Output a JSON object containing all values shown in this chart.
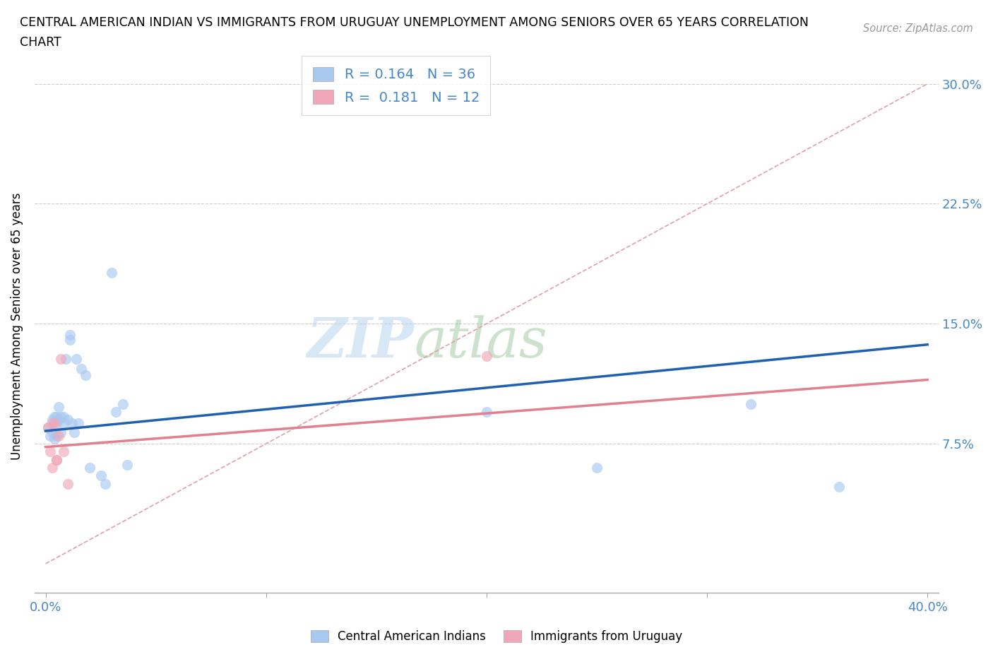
{
  "title_line1": "CENTRAL AMERICAN INDIAN VS IMMIGRANTS FROM URUGUAY UNEMPLOYMENT AMONG SENIORS OVER 65 YEARS CORRELATION",
  "title_line2": "CHART",
  "source": "Source: ZipAtlas.com",
  "ylabel": "Unemployment Among Seniors over 65 years",
  "watermark_zip": "ZIP",
  "watermark_atlas": "atlas",
  "blue_color": "#A8C8F0",
  "pink_color": "#F0A8B8",
  "blue_line_color": "#2060B0",
  "pink_line_color": "#E08090",
  "dashed_line_color": "#E0A0A8",
  "grid_color": "#CCCCCC",
  "axis_color": "#AAAAAA",
  "tick_label_color": "#4488CC",
  "blue_scatter_x": [
    0.001,
    0.002,
    0.003,
    0.003,
    0.004,
    0.004,
    0.005,
    0.005,
    0.005,
    0.006,
    0.006,
    0.007,
    0.007,
    0.008,
    0.008,
    0.009,
    0.01,
    0.011,
    0.011,
    0.012,
    0.013,
    0.014,
    0.015,
    0.016,
    0.018,
    0.02,
    0.025,
    0.027,
    0.03,
    0.032,
    0.035,
    0.037,
    0.2,
    0.25,
    0.32,
    0.36
  ],
  "blue_scatter_y": [
    0.085,
    0.08,
    0.082,
    0.09,
    0.078,
    0.092,
    0.08,
    0.088,
    0.092,
    0.09,
    0.098,
    0.082,
    0.092,
    0.088,
    0.092,
    0.128,
    0.09,
    0.14,
    0.143,
    0.088,
    0.082,
    0.128,
    0.088,
    0.122,
    0.118,
    0.06,
    0.055,
    0.05,
    0.182,
    0.095,
    0.1,
    0.062,
    0.095,
    0.06,
    0.1,
    0.048
  ],
  "pink_scatter_x": [
    0.001,
    0.002,
    0.003,
    0.003,
    0.004,
    0.005,
    0.005,
    0.006,
    0.007,
    0.008,
    0.01,
    0.2
  ],
  "pink_scatter_y": [
    0.085,
    0.07,
    0.06,
    0.088,
    0.088,
    0.065,
    0.065,
    0.08,
    0.128,
    0.07,
    0.05,
    0.13
  ],
  "blue_trendline_x": [
    0.0,
    0.4
  ],
  "blue_trendline_y": [
    0.083,
    0.137
  ],
  "pink_trendline_x": [
    0.0,
    0.4
  ],
  "pink_trendline_y": [
    0.073,
    0.115
  ],
  "dashed_trendline_x": [
    0.0,
    0.4
  ],
  "dashed_trendline_y": [
    0.0,
    0.3
  ],
  "xlim": [
    0.0,
    0.4
  ],
  "ylim": [
    0.0,
    0.3
  ],
  "xtick_positions": [
    0.0,
    0.1,
    0.2,
    0.3,
    0.4
  ],
  "xtick_labels": [
    "0.0%",
    "",
    "",
    "",
    "40.0%"
  ],
  "ytick_positions": [
    0.075,
    0.15,
    0.225,
    0.3
  ],
  "ytick_labels": [
    "7.5%",
    "15.0%",
    "22.5%",
    "30.0%"
  ],
  "legend_label1": "R = 0.164   N = 36",
  "legend_label2": "R =  0.181   N = 12",
  "bottom_label1": "Central American Indians",
  "bottom_label2": "Immigrants from Uruguay"
}
